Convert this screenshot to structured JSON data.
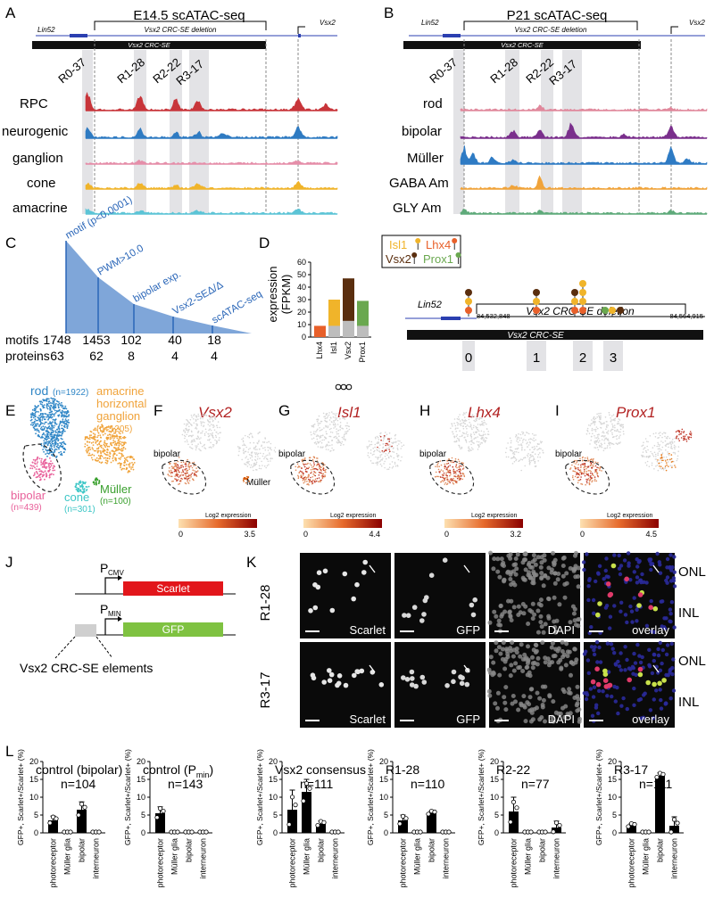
{
  "panels": {
    "A": {
      "letter": "A",
      "title": "E14.5 scATAC-seq",
      "gene_left": "Lin52",
      "gene_right": "Vsx2",
      "deletion_label": "Vsx2 CRC-SE deletion",
      "bar_label": "Vsx2 CRC-SE",
      "peaks": [
        "R0-37",
        "R1-28",
        "R2-22",
        "R3-17"
      ],
      "tracks": [
        {
          "name": "RPC",
          "color": "#c8353a"
        },
        {
          "name": "neurogenic",
          "color": "#2f7bc2"
        },
        {
          "name": "ganglion",
          "color": "#e58ea9"
        },
        {
          "name": "cone",
          "color": "#f0b42a"
        },
        {
          "name": "amacrine",
          "color": "#5cc4d6"
        }
      ]
    },
    "B": {
      "letter": "B",
      "title": "P21 scATAC-seq",
      "gene_left": "Lin52",
      "gene_right": "Vsx2",
      "deletion_label": "Vsx2 CRC-SE deletion",
      "bar_label": "Vsx2 CRC-SE",
      "peaks": [
        "R0-37",
        "R1-28",
        "R2-22",
        "R3-17"
      ],
      "tracks": [
        {
          "name": "rod",
          "color": "#e0889c"
        },
        {
          "name": "bipolar",
          "color": "#7a2f8c"
        },
        {
          "name": "Müller",
          "color": "#2e7bc4"
        },
        {
          "name": "GABA Am",
          "color": "#f0a33a"
        },
        {
          "name": "GLY Am",
          "color": "#5faa7a"
        }
      ]
    },
    "C": {
      "letter": "C",
      "steps": [
        "motif (p<0.0001)",
        "PWM>10.0",
        "bipolar exp.",
        "Vsx2-SEΔ/Δ",
        "scATAC-seq"
      ],
      "row_labels": [
        "motifs",
        "proteins"
      ],
      "motifs": [
        1748,
        1453,
        102,
        40,
        18
      ],
      "proteins": [
        63,
        62,
        8,
        4,
        4
      ]
    },
    "D": {
      "letter": "D",
      "ylabel_1": "expression",
      "ylabel_2": "(FPKM)",
      "y_ticks": [
        "0",
        "10",
        "20",
        "30",
        "40",
        "50",
        "60"
      ],
      "legend": [
        {
          "name": "Isl1",
          "color": "#f0b42a"
        },
        {
          "name": "Lhx4",
          "color": "#e8602a"
        },
        {
          "name": "Vsx2",
          "color": "#5a2e0e"
        },
        {
          "name": "Prox1",
          "color": "#6aa84f"
        }
      ],
      "gene_left": "Lin52",
      "coord_left": "84,532,848",
      "coord_right": "84,564,915",
      "deletion_label": "Vsx2 CRC-SE deletion",
      "bar_label": "Vsx2 CRC-SE",
      "region_labels": [
        "0",
        "1",
        "2",
        "3"
      ]
    },
    "E": {
      "letter": "E",
      "clusters": [
        {
          "name": "rod",
          "n": "(n=1922)",
          "color": "#2f86c6"
        },
        {
          "name": "amacrine",
          "color": "#f0a33a"
        },
        {
          "name": "horizontal",
          "color": "#f0a33a"
        },
        {
          "name": "ganglion",
          "n": "(n=1205)",
          "color": "#f0a33a"
        },
        {
          "name": "bipolar",
          "n": "(n=439)",
          "color": "#e8609a"
        },
        {
          "name": "cone",
          "n": "(n=301)",
          "color": "#3cc6c6"
        },
        {
          "name": "Müller",
          "n": "(n=100)",
          "color": "#3aa02e"
        }
      ]
    },
    "F": {
      "letter": "F",
      "gene": "Vsx2",
      "max": "3.5",
      "min": "0",
      "legend": "Log2 expression",
      "labels": [
        "bipolar",
        "Müller"
      ]
    },
    "G": {
      "letter": "G",
      "gene": "Isl1",
      "max": "4.4",
      "min": "0",
      "legend": "Log2 expression",
      "labels": [
        "bipolar"
      ]
    },
    "H": {
      "letter": "H",
      "gene": "Lhx4",
      "max": "3.2",
      "min": "0",
      "legend": "Log2 expression",
      "labels": [
        "bipolar"
      ]
    },
    "I": {
      "letter": "I",
      "gene": "Prox1",
      "max": "4.5",
      "min": "0",
      "legend": "Log2 expression",
      "labels": [
        "bipolar"
      ]
    },
    "J": {
      "letter": "J",
      "p_cmv_main": "P",
      "p_cmv_sub": "CMV",
      "p_min_main": "P",
      "p_min_sub": "MIN",
      "scarlet": "Scarlet",
      "gfp": "GFP",
      "elements_label": "Vsx2 CRC-SE elements"
    },
    "K": {
      "letter": "K",
      "rows": [
        "R1-28",
        "R3-17"
      ],
      "channels": [
        "Scarlet",
        "GFP",
        "DAPI",
        "overlay"
      ],
      "layers": [
        "ONL",
        "INL",
        "ONL",
        "INL"
      ]
    },
    "L": {
      "letter": "L",
      "ylabel": "GFP+, Scarlet+/Scarlet+ (%)",
      "categories": [
        "photoreceptor",
        "Müller glia",
        "bipolar",
        "interneuron"
      ]
    }
  },
  "chart_data": [
    {
      "type": "bar",
      "title": "",
      "xlabel": "",
      "ylabel": "expression (FPKM)",
      "ylim": [
        0,
        60
      ],
      "categories": [
        "Lhx4",
        "Isl1",
        "Vsx2",
        "Prox1"
      ],
      "series": [
        {
          "values": [
            9,
            30,
            47,
            29
          ],
          "colors": [
            "#e8602a",
            "#f0b42a",
            "#5a2e0e",
            "#6aa84f"
          ]
        },
        {
          "values": [
            2,
            9,
            13,
            9
          ],
          "colors": [
            "#e8602a",
            "#bdbdbd",
            "#bdbdbd",
            "#bdbdbd"
          ]
        }
      ]
    },
    {
      "type": "bar",
      "title": "control (bipolar)",
      "n": "n=104",
      "categories": [
        "photoreceptor",
        "Müller glia",
        "bipolar",
        "interneuron"
      ],
      "values": [
        3.5,
        0,
        6.5,
        0
      ],
      "err": [
        1.2,
        0,
        2.2,
        0
      ],
      "ylim": [
        0,
        20
      ],
      "yticks": [
        0,
        5,
        10,
        15,
        20
      ]
    },
    {
      "type": "bar",
      "title": "control (P",
      "title_sub": "min",
      "title_end": ")",
      "n": "n=143",
      "categories": [
        "photoreceptor",
        "Müller glia",
        "bipolar",
        "interneuron"
      ],
      "values": [
        5.5,
        0,
        0,
        0
      ],
      "err": [
        1.8,
        0,
        0,
        0
      ],
      "ylim": [
        0,
        20
      ],
      "yticks": [
        0,
        5,
        10,
        15,
        20
      ]
    },
    {
      "type": "bar",
      "title": "Vsx2 consensus",
      "n": "n=111",
      "categories": [
        "photoreceptor",
        "Müller glia",
        "bipolar",
        "interneuron"
      ],
      "values": [
        6.5,
        11.5,
        2.5,
        0
      ],
      "err": [
        5.5,
        3.5,
        0.8,
        0
      ],
      "ylim": [
        0,
        20
      ],
      "yticks": [
        0,
        5,
        10,
        15,
        20
      ]
    },
    {
      "type": "bar",
      "title": "R1-28",
      "n": "n=110",
      "categories": [
        "photoreceptor",
        "Müller glia",
        "bipolar",
        "interneuron"
      ],
      "values": [
        3.5,
        0,
        5.5,
        0
      ],
      "err": [
        1.5,
        0,
        0.6,
        0
      ],
      "ylim": [
        0,
        20
      ],
      "yticks": [
        0,
        5,
        10,
        15,
        20
      ]
    },
    {
      "type": "bar",
      "title": "R2-22",
      "n": "n=77",
      "categories": [
        "photoreceptor",
        "Müller glia",
        "bipolar",
        "interneuron"
      ],
      "values": [
        6,
        0,
        0,
        1.5
      ],
      "err": [
        4,
        0,
        0,
        1.8
      ],
      "ylim": [
        0,
        20
      ],
      "yticks": [
        0,
        5,
        10,
        15,
        20
      ]
    },
    {
      "type": "bar",
      "title": "R3-17",
      "n": "n=111",
      "categories": [
        "photoreceptor",
        "Müller glia",
        "bipolar",
        "interneuron"
      ],
      "values": [
        2,
        0,
        16,
        2
      ],
      "err": [
        0.6,
        0,
        0.8,
        2.5
      ],
      "ylim": [
        0,
        20
      ],
      "yticks": [
        0,
        5,
        10,
        15,
        20
      ]
    }
  ]
}
